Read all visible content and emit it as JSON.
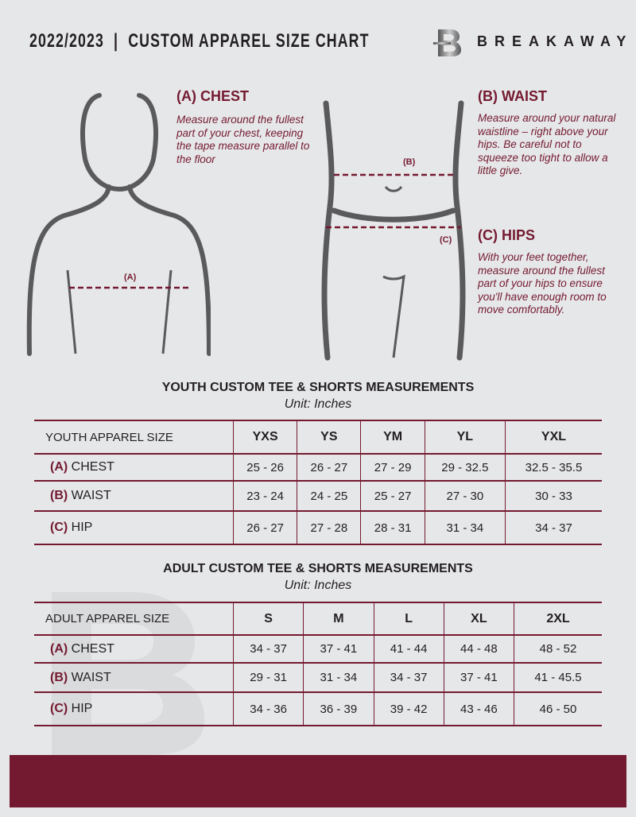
{
  "header": {
    "title": "2022/2023  |  CUSTOM APPAREL SIZE CHART",
    "brand": "BREAKAWAY",
    "logo_letter": "B"
  },
  "colors": {
    "accent": "#741a30",
    "background": "#e6e7e9"
  },
  "measure": {
    "chest": {
      "heading": "(A) CHEST",
      "desc": "Measure around the fullest part of your chest, keeping the tape measure parallel to the floor",
      "marker": "(A)"
    },
    "waist": {
      "heading": "(B) WAIST",
      "desc": "Measure around your natural waistline – right above your hips. Be careful not to squeeze too tight to allow a little give.",
      "marker": "(B)"
    },
    "hips": {
      "heading": "(C) HIPS",
      "desc": "With your feet together, measure around the fullest part of your hips to ensure you'll have enough room to move comfortably.",
      "marker": "(C)"
    }
  },
  "youth": {
    "title": "YOUTH CUSTOM TEE & SHORTS MEASUREMENTS",
    "unit": "Unit: Inches",
    "header": [
      "YOUTH APPAREL SIZE",
      "YXS",
      "YS",
      "YM",
      "YL",
      "YXL"
    ],
    "rows": [
      {
        "letter": "(A)",
        "name": "CHEST",
        "values": [
          "25 - 26",
          "26 - 27",
          "27 - 29",
          "29 - 32.5",
          "32.5 - 35.5"
        ]
      },
      {
        "letter": "(B)",
        "name": "WAIST",
        "values": [
          "23 - 24",
          "24 - 25",
          "25 - 27",
          "27 - 30",
          "30 - 33"
        ]
      },
      {
        "letter": "(C)",
        "name": "HIP",
        "values": [
          "26 - 27",
          "27 - 28",
          "28 - 31",
          "31 - 34",
          "34 - 37"
        ]
      }
    ]
  },
  "adult": {
    "title": "ADULT CUSTOM TEE & SHORTS MEASUREMENTS",
    "unit": "Unit: Inches",
    "header": [
      "ADULT APPAREL SIZE",
      "S",
      "M",
      "L",
      "XL",
      "2XL"
    ],
    "rows": [
      {
        "letter": "(A)",
        "name": "CHEST",
        "values": [
          "34 - 37",
          "37 - 41",
          "41 - 44",
          "44 - 48",
          "48 - 52"
        ]
      },
      {
        "letter": "(B)",
        "name": "WAIST",
        "values": [
          "29 - 31",
          "31 - 34",
          "34 - 37",
          "37 - 41",
          "41 - 45.5"
        ]
      },
      {
        "letter": "(C)",
        "name": "HIP",
        "values": [
          "34 - 36",
          "36 - 39",
          "39 - 42",
          "43 - 46",
          "46 - 50"
        ]
      }
    ]
  }
}
